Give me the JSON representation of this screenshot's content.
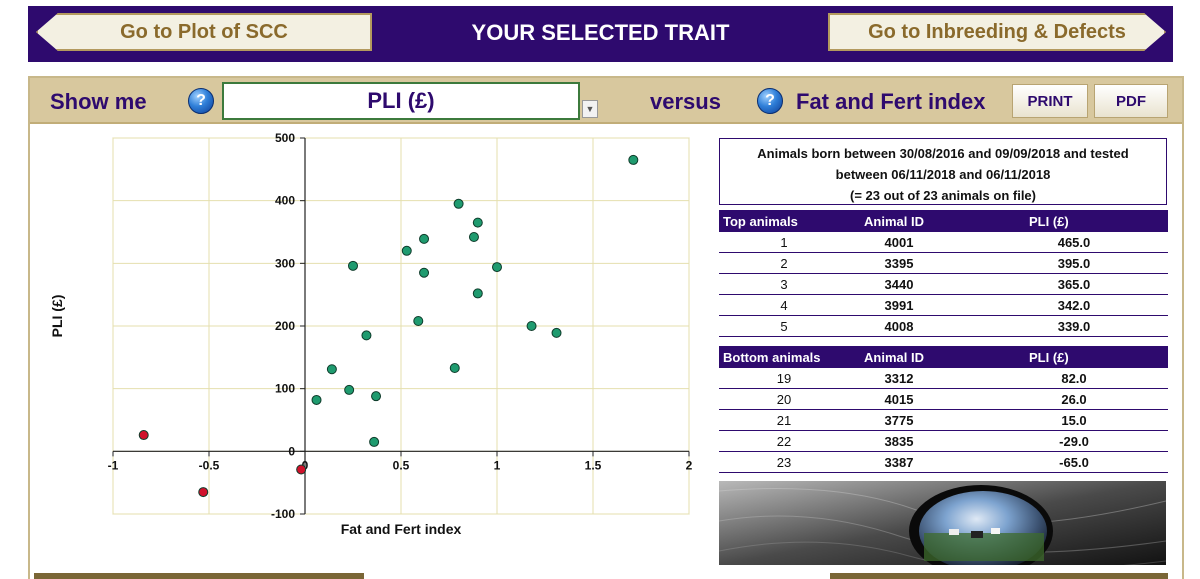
{
  "header": {
    "left_button": "Go to Plot of SCC",
    "title": "YOUR SELECTED TRAIT",
    "right_button": "Go to Inbreeding & Defects"
  },
  "controls": {
    "show_me_label": "Show me",
    "help_glyph": "?",
    "selected_trait": "PLI (£)",
    "versus_label": "versus",
    "versus_trait": "Fat and Fert index",
    "print_label": "PRINT",
    "pdf_label": "PDF"
  },
  "colors": {
    "brand_purple": "#2e0a6e",
    "gold": "#d8c89e",
    "point_normal": "#1f9b6f",
    "point_negative": "#d0112b"
  },
  "chart_data": {
    "type": "scatter",
    "title": "",
    "xlabel": "Fat and Fert index",
    "ylabel": "PLI (£)",
    "xlim": [
      -1,
      2
    ],
    "ylim": [
      -100,
      500
    ],
    "xticks": [
      "-1",
      "-0.5",
      "0",
      "0.5",
      "1",
      "1.5",
      "2"
    ],
    "yticks": [
      "-100",
      "0",
      "100",
      "200",
      "300",
      "400",
      "500"
    ],
    "grid": true,
    "series": [
      {
        "color": "#1f9b6f",
        "points": [
          [
            1.71,
            465
          ],
          [
            0.8,
            395
          ],
          [
            0.9,
            365
          ],
          [
            0.88,
            342
          ],
          [
            0.62,
            339
          ],
          [
            0.53,
            320
          ],
          [
            0.25,
            296
          ],
          [
            1.0,
            294
          ],
          [
            0.62,
            285
          ],
          [
            0.9,
            252
          ],
          [
            0.59,
            208
          ],
          [
            1.18,
            200
          ],
          [
            1.31,
            189
          ],
          [
            0.32,
            185
          ],
          [
            0.78,
            133
          ],
          [
            0.14,
            131
          ],
          [
            0.23,
            98
          ],
          [
            0.37,
            88
          ],
          [
            0.06,
            82
          ],
          [
            0.36,
            15
          ]
        ]
      },
      {
        "color": "#d0112b",
        "points": [
          [
            -0.84,
            26
          ],
          [
            -0.02,
            -29
          ],
          [
            -0.53,
            -65
          ]
        ]
      }
    ]
  },
  "info": {
    "line1": "Animals born between 30/08/2016 and 09/09/2018 and tested",
    "line2": "between 06/11/2018 and 06/11/2018",
    "line3": "(= 23 out of 23 animals on file)"
  },
  "top_table": {
    "headers": [
      "Top animals",
      "Animal ID",
      "PLI (£)"
    ],
    "rows": [
      [
        "1",
        "4001",
        "465.0"
      ],
      [
        "2",
        "3395",
        "395.0"
      ],
      [
        "3",
        "3440",
        "365.0"
      ],
      [
        "4",
        "3991",
        "342.0"
      ],
      [
        "5",
        "4008",
        "339.0"
      ]
    ]
  },
  "bottom_table": {
    "headers": [
      "Bottom animals",
      "Animal ID",
      "PLI (£)"
    ],
    "rows": [
      [
        "19",
        "3312",
        "82.0"
      ],
      [
        "20",
        "4015",
        "26.0"
      ],
      [
        "21",
        "3775",
        "15.0"
      ],
      [
        "22",
        "3835",
        "-29.0"
      ],
      [
        "23",
        "3387",
        "-65.0"
      ]
    ]
  }
}
